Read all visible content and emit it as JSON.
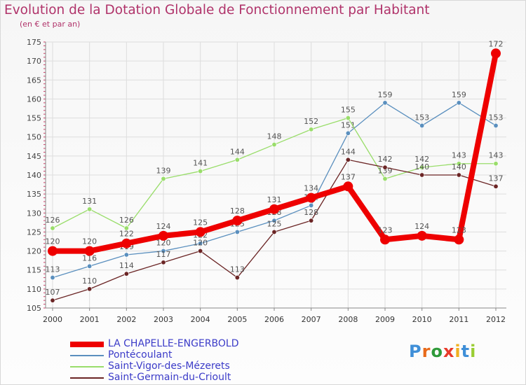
{
  "chart_data": {
    "type": "line",
    "title": "Evolution de la Dotation Globale de Fonctionnement par Habitant",
    "subtitle": "(en € et par an)",
    "x": [
      "2000",
      "2001",
      "2002",
      "2003",
      "2004",
      "2005",
      "2006",
      "2007",
      "2008",
      "2009",
      "2010",
      "2011",
      "2012"
    ],
    "ylim": [
      105,
      175
    ],
    "yticks": [
      105,
      110,
      115,
      120,
      125,
      130,
      135,
      140,
      145,
      150,
      155,
      160,
      165,
      170,
      175
    ],
    "grid": true,
    "legend_position": "bottom-left",
    "series": [
      {
        "name": "Pontécoulant",
        "color": "#5a8fbe",
        "values": [
          113,
          116,
          119,
          120,
          122,
          125,
          128,
          132,
          151,
          159,
          153,
          159,
          153
        ]
      },
      {
        "name": "Saint-Vigor-des-Mézerets",
        "color": "#99dd6a",
        "values": [
          126,
          131,
          126,
          139,
          141,
          144,
          148,
          152,
          155,
          139,
          142,
          143,
          143
        ]
      },
      {
        "name": "Saint-Germain-du-Crioult",
        "color": "#6b2525",
        "values": [
          107,
          110,
          114,
          117,
          120,
          113,
          125,
          128,
          144,
          142,
          140,
          140,
          137
        ]
      },
      {
        "name": "LA CHAPELLE-ENGERBOLD",
        "color": "#ee0000",
        "values": [
          120,
          120,
          122,
          124,
          125,
          128,
          131,
          134,
          137,
          123,
          124,
          123,
          172
        ]
      }
    ]
  },
  "logo": {
    "text": "Proxiti",
    "letter_colors": [
      "#3f8fd8",
      "#e86a1a",
      "#2f9a3a",
      "#e83a2a",
      "#f0b020",
      "#3f8fd8",
      "#9acd32"
    ]
  }
}
